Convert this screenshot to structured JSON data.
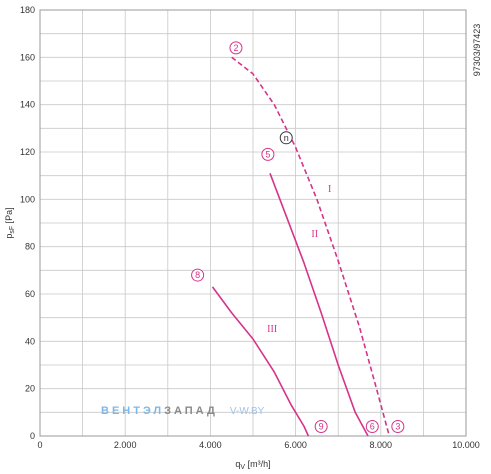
{
  "chart_data": {
    "type": "line",
    "xlabel": "q",
    "xlabel_sub": "V",
    "xlabel_unit": " [m³/h]",
    "ylabel": "p",
    "ylabel_sub": "sF",
    "ylabel_unit": " [Pa]",
    "xlim": [
      0,
      10000
    ],
    "ylim": [
      0,
      180
    ],
    "x_ticks": [
      0,
      2000,
      4000,
      6000,
      8000,
      10000
    ],
    "x_tick_labels": [
      "0",
      "2.000",
      "4.000",
      "6.000",
      "8.000",
      "10.000"
    ],
    "y_ticks": [
      0,
      20,
      40,
      60,
      80,
      100,
      120,
      140,
      160,
      180
    ],
    "y_tick_labels": [
      "0",
      "20",
      "40",
      "60",
      "80",
      "100",
      "120",
      "140",
      "160",
      "180"
    ],
    "grid": true,
    "series_color": "#d6338a",
    "series": [
      {
        "name": "I",
        "style": "dashed",
        "x": [
          4500,
          5000,
          5500,
          6000,
          6500,
          7000,
          7500,
          7900,
          8200
        ],
        "y": [
          160,
          153,
          140,
          122,
          100,
          74,
          46,
          20,
          0
        ]
      },
      {
        "name": "II",
        "style": "solid",
        "x": [
          5400,
          5800,
          6200,
          6600,
          7000,
          7400,
          7700
        ],
        "y": [
          111,
          92,
          73,
          52,
          30,
          10,
          0
        ]
      },
      {
        "name": "III",
        "style": "solid",
        "x": [
          4050,
          4500,
          5000,
          5500,
          5900,
          6200,
          6300
        ],
        "y": [
          63,
          52,
          41,
          27,
          13,
          4,
          0
        ]
      }
    ],
    "series_labels": [
      {
        "text": "I",
        "x": 6800,
        "y": 103
      },
      {
        "text": "II",
        "x": 6450,
        "y": 84
      },
      {
        "text": "III",
        "x": 5450,
        "y": 44
      }
    ],
    "markers": [
      {
        "text": "2",
        "x": 4600,
        "y": 164
      },
      {
        "text": "5",
        "x": 5350,
        "y": 119
      },
      {
        "text": "8",
        "x": 3700,
        "y": 68
      },
      {
        "text": "9",
        "x": 6600,
        "y": 4
      },
      {
        "text": "6",
        "x": 7800,
        "y": 4
      },
      {
        "text": "3",
        "x": 8400,
        "y": 4
      }
    ],
    "operating_point": {
      "text": "n",
      "x": 5780,
      "y": 126
    },
    "code_label": "97303/97423"
  },
  "watermark": {
    "part1": "ВЕНТЭЛ",
    "part2": "ЗАПАД",
    "part3": "V-W.BY",
    "color1": "#7fb7e6",
    "color2": "#8a8a8a",
    "color3": "#9fc3e6"
  }
}
